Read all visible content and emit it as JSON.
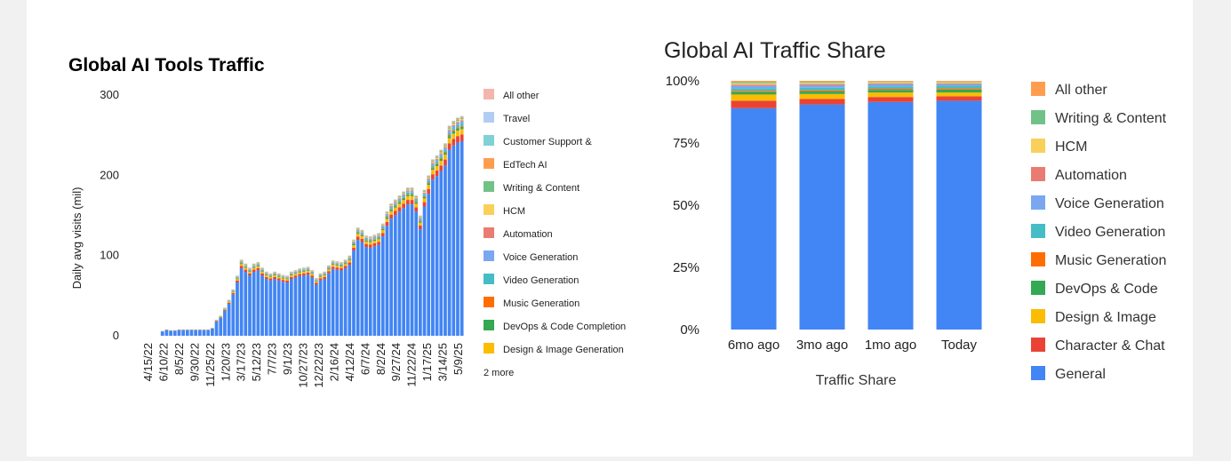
{
  "chart_data": [
    {
      "type": "bar",
      "stacked": true,
      "title": "Global AI Tools Traffic",
      "ylabel": "Daily avg visits (mil)",
      "ylim": [
        0,
        300
      ],
      "yticks": [
        0,
        100,
        200,
        300
      ],
      "xticks": [
        "4/15/22",
        "6/10/22",
        "8/5/22",
        "9/30/22",
        "11/25/22",
        "1/20/23",
        "3/17/23",
        "5/12/23",
        "7/7/23",
        "9/1/23",
        "10/27/23",
        "12/22/23",
        "2/16/24",
        "4/12/24",
        "6/7/24",
        "8/2/24",
        "9/27/24",
        "11/22/24",
        "1/17/25",
        "3/14/25",
        "5/9/25"
      ],
      "legend": [
        "All other",
        "Travel",
        "Customer Support &",
        "EdTech AI",
        "Writing & Content",
        "HCM",
        "Automation",
        "Voice Generation",
        "Video Generation",
        "Music Generation",
        "DevOps & Code Completion",
        "Design & Image Generation"
      ],
      "legend_more": "2 more",
      "totals": [
        0,
        0,
        0,
        0,
        0,
        6,
        8,
        7,
        7,
        8,
        8,
        8,
        8,
        8,
        8,
        8,
        8,
        10,
        20,
        25,
        35,
        45,
        58,
        75,
        95,
        90,
        85,
        90,
        92,
        85,
        80,
        78,
        80,
        78,
        76,
        75,
        80,
        82,
        84,
        85,
        86,
        82,
        72,
        78,
        80,
        88,
        94,
        93,
        92,
        95,
        100,
        120,
        135,
        132,
        125,
        124,
        126,
        128,
        140,
        155,
        165,
        170,
        175,
        180,
        185,
        185,
        175,
        150,
        182,
        200,
        220,
        225,
        232,
        240,
        262,
        268,
        272,
        274
      ],
      "general_share": 0.885,
      "colors": [
        "#f4b5ac",
        "#b3cdf2",
        "#7fd1d6",
        "#ff9d4f",
        "#71c286",
        "#f9d05a",
        "#ea7b72",
        "#7aa7f0",
        "#44bdc6",
        "#ff6d00",
        "#34a853",
        "#fbbc04",
        "#ea4335",
        "#4285f4"
      ]
    },
    {
      "type": "bar",
      "stacked": true,
      "title": "Global AI Traffic Share",
      "xlabel": "Traffic Share",
      "ylim": [
        0,
        1
      ],
      "yticks": [
        "0%",
        "25%",
        "50%",
        "75%",
        "100%"
      ],
      "categories": [
        "6mo ago",
        "3mo ago",
        "1mo ago",
        "Today"
      ],
      "series": [
        {
          "name": "General",
          "color": "#4285f4",
          "values": [
            0.89,
            0.905,
            0.915,
            0.92
          ]
        },
        {
          "name": "Character & Chat",
          "color": "#ea4335",
          "values": [
            0.03,
            0.022,
            0.02,
            0.018
          ]
        },
        {
          "name": "Design & Image",
          "color": "#fbbc04",
          "values": [
            0.025,
            0.02,
            0.018,
            0.015
          ]
        },
        {
          "name": "DevOps & Code",
          "color": "#34a853",
          "values": [
            0.01,
            0.01,
            0.01,
            0.012
          ]
        },
        {
          "name": "Music Generation",
          "color": "#ff6d00",
          "values": [
            0.005,
            0.005,
            0.005,
            0.005
          ]
        },
        {
          "name": "Video Generation",
          "color": "#44bdc6",
          "values": [
            0.01,
            0.01,
            0.01,
            0.01
          ]
        },
        {
          "name": "Voice Generation",
          "color": "#7aa7f0",
          "values": [
            0.01,
            0.01,
            0.008,
            0.006
          ]
        },
        {
          "name": "Automation",
          "color": "#ea7b72",
          "values": [
            0.005,
            0.005,
            0.004,
            0.004
          ]
        },
        {
          "name": "HCM",
          "color": "#f9d05a",
          "values": [
            0.005,
            0.005,
            0.004,
            0.004
          ]
        },
        {
          "name": "Writing & Content",
          "color": "#71c286",
          "values": [
            0.005,
            0.004,
            0.003,
            0.003
          ]
        },
        {
          "name": "All other",
          "color": "#ff9d4f",
          "values": [
            0.005,
            0.004,
            0.003,
            0.003
          ]
        }
      ],
      "legend_order": [
        "All other",
        "Writing & Content",
        "HCM",
        "Automation",
        "Voice Generation",
        "Video Generation",
        "Music Generation",
        "DevOps & Code",
        "Design & Image",
        "Character & Chat",
        "General"
      ]
    }
  ]
}
